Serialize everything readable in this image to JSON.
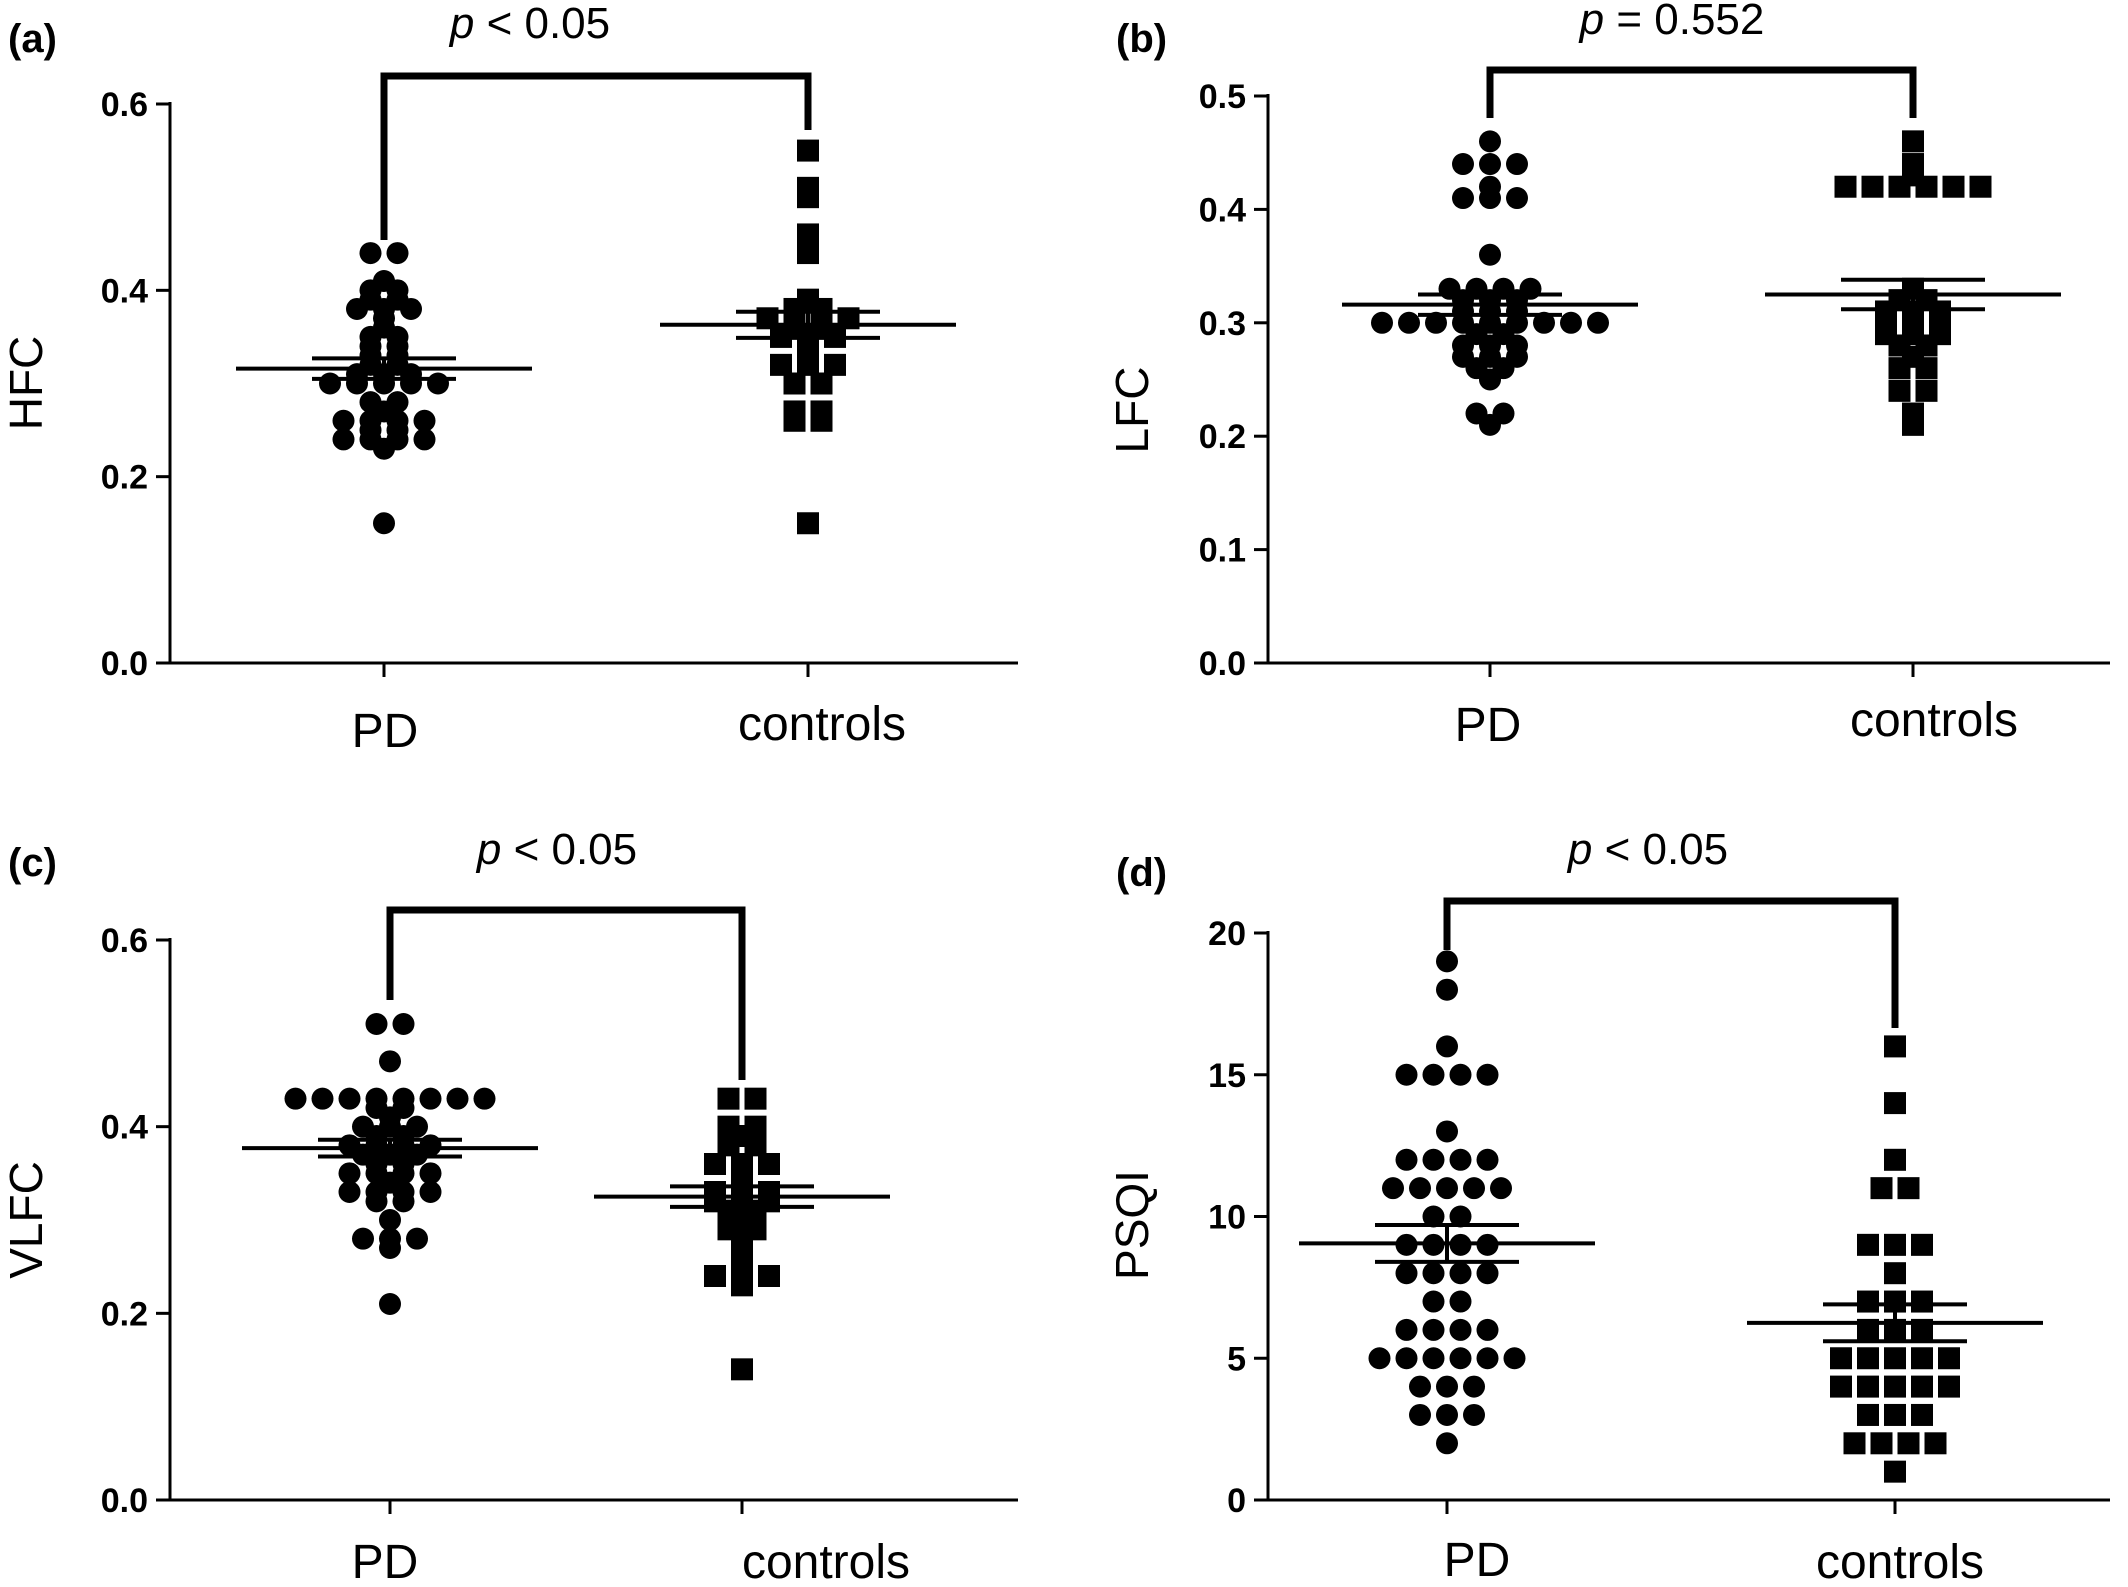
{
  "chart_data": [
    {
      "type": "scatter",
      "panel": "(a)",
      "title": "",
      "ylabel": "HFC",
      "categories": [
        "PD",
        "controls"
      ],
      "ylim": [
        0,
        0.6
      ],
      "yticks": [
        "0.0",
        "0.2",
        "0.4",
        "0.6"
      ],
      "comparison": {
        "prefix": "p",
        "text": " < 0.05"
      },
      "series": [
        {
          "name": "PD",
          "marker": "circle",
          "mean": 0.316,
          "sem": 0.011,
          "values": [
            0.44,
            0.44,
            0.41,
            0.4,
            0.4,
            0.39,
            0.39,
            0.38,
            0.38,
            0.38,
            0.37,
            0.36,
            0.35,
            0.35,
            0.34,
            0.34,
            0.33,
            0.33,
            0.32,
            0.32,
            0.31,
            0.31,
            0.31,
            0.3,
            0.3,
            0.3,
            0.3,
            0.3,
            0.28,
            0.28,
            0.27,
            0.26,
            0.26,
            0.26,
            0.26,
            0.25,
            0.25,
            0.24,
            0.24,
            0.24,
            0.24,
            0.23,
            0.15
          ]
        },
        {
          "name": "controls",
          "marker": "square",
          "mean": 0.363,
          "sem": 0.014,
          "values": [
            0.55,
            0.51,
            0.5,
            0.46,
            0.45,
            0.44,
            0.39,
            0.38,
            0.38,
            0.37,
            0.37,
            0.37,
            0.37,
            0.36,
            0.36,
            0.35,
            0.35,
            0.35,
            0.33,
            0.32,
            0.32,
            0.32,
            0.3,
            0.3,
            0.27,
            0.27,
            0.26,
            0.26,
            0.15
          ]
        }
      ]
    },
    {
      "type": "scatter",
      "panel": "(b)",
      "title": "",
      "ylabel": "LFC",
      "categories": [
        "PD",
        "controls"
      ],
      "ylim": [
        0,
        0.5
      ],
      "yticks": [
        "0.0",
        "0.1",
        "0.2",
        "0.3",
        "0.4",
        "0.5"
      ],
      "comparison": {
        "prefix": "p",
        "text": " = 0.552"
      },
      "series": [
        {
          "name": "PD",
          "marker": "circle",
          "mean": 0.316,
          "sem": 0.009,
          "values": [
            0.46,
            0.44,
            0.44,
            0.44,
            0.42,
            0.41,
            0.41,
            0.41,
            0.36,
            0.33,
            0.33,
            0.33,
            0.33,
            0.32,
            0.32,
            0.32,
            0.31,
            0.31,
            0.31,
            0.3,
            0.3,
            0.3,
            0.3,
            0.3,
            0.3,
            0.3,
            0.3,
            0.3,
            0.29,
            0.29,
            0.28,
            0.28,
            0.28,
            0.27,
            0.27,
            0.27,
            0.26,
            0.26,
            0.25,
            0.22,
            0.22,
            0.21
          ]
        },
        {
          "name": "controls",
          "marker": "square",
          "mean": 0.325,
          "sem": 0.013,
          "values": [
            0.46,
            0.44,
            0.43,
            0.42,
            0.42,
            0.42,
            0.42,
            0.42,
            0.42,
            0.33,
            0.32,
            0.32,
            0.31,
            0.31,
            0.31,
            0.3,
            0.3,
            0.3,
            0.29,
            0.29,
            0.29,
            0.28,
            0.28,
            0.27,
            0.26,
            0.26,
            0.24,
            0.24,
            0.22,
            0.21
          ]
        }
      ]
    },
    {
      "type": "scatter",
      "panel": "(c)",
      "title": "",
      "ylabel": "VLFC",
      "categories": [
        "PD",
        "controls"
      ],
      "ylim": [
        0,
        0.6
      ],
      "yticks": [
        "0.0",
        "0.2",
        "0.4",
        "0.6"
      ],
      "comparison": {
        "prefix": "p",
        "text": " < 0.05"
      },
      "series": [
        {
          "name": "PD",
          "marker": "circle",
          "mean": 0.377,
          "sem": 0.009,
          "values": [
            0.51,
            0.51,
            0.47,
            0.43,
            0.43,
            0.43,
            0.43,
            0.43,
            0.43,
            0.43,
            0.43,
            0.42,
            0.42,
            0.41,
            0.4,
            0.4,
            0.4,
            0.39,
            0.39,
            0.38,
            0.38,
            0.38,
            0.38,
            0.37,
            0.37,
            0.37,
            0.36,
            0.36,
            0.35,
            0.35,
            0.35,
            0.35,
            0.34,
            0.33,
            0.33,
            0.33,
            0.33,
            0.32,
            0.32,
            0.3,
            0.28,
            0.28,
            0.28,
            0.27,
            0.21
          ]
        },
        {
          "name": "controls",
          "marker": "square",
          "mean": 0.325,
          "sem": 0.011,
          "values": [
            0.43,
            0.43,
            0.4,
            0.4,
            0.39,
            0.38,
            0.38,
            0.36,
            0.36,
            0.36,
            0.35,
            0.33,
            0.33,
            0.33,
            0.32,
            0.32,
            0.32,
            0.31,
            0.31,
            0.3,
            0.29,
            0.29,
            0.28,
            0.27,
            0.26,
            0.24,
            0.24,
            0.24,
            0.23,
            0.14
          ]
        }
      ]
    },
    {
      "type": "scatter",
      "panel": "(d)",
      "title": "",
      "ylabel": "PSQI",
      "categories": [
        "PD",
        "controls"
      ],
      "ylim": [
        0,
        20
      ],
      "yticks": [
        "0",
        "5",
        "10",
        "15",
        "20"
      ],
      "comparison": {
        "prefix": "p",
        "text": " < 0.05"
      },
      "series": [
        {
          "name": "PD",
          "marker": "circle",
          "mean": 9.05,
          "sem": 0.65,
          "values": [
            19,
            18,
            16,
            15,
            15,
            15,
            15,
            13,
            12,
            12,
            12,
            12,
            11,
            11,
            11,
            11,
            11,
            10,
            10,
            9,
            9,
            9,
            9,
            8,
            8,
            8,
            8,
            7,
            7,
            6,
            6,
            6,
            6,
            5,
            5,
            5,
            5,
            5,
            5,
            4,
            4,
            4,
            3,
            3,
            3,
            2
          ]
        },
        {
          "name": "controls",
          "marker": "square",
          "mean": 6.25,
          "sem": 0.65,
          "values": [
            16,
            14,
            12,
            11,
            11,
            9,
            9,
            9,
            8,
            7,
            7,
            7,
            6,
            6,
            6,
            5,
            5,
            5,
            5,
            5,
            4,
            4,
            4,
            4,
            4,
            3,
            3,
            3,
            2,
            2,
            2,
            2,
            1
          ]
        }
      ]
    }
  ]
}
